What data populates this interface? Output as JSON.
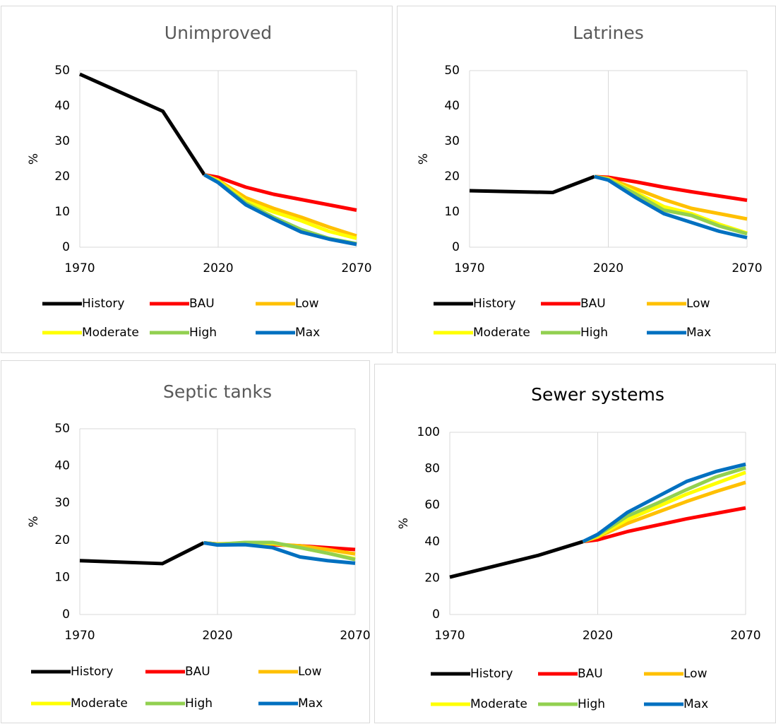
{
  "chart_data": [
    {
      "type": "line",
      "title": "Unimproved",
      "y_label": "%",
      "xlim": [
        1970,
        2070
      ],
      "xticks": [
        1970,
        2020,
        2070
      ],
      "ylim": [
        0,
        50
      ],
      "yticks": [
        0,
        10,
        20,
        30,
        40,
        50
      ],
      "grid": true,
      "series": [
        {
          "name": "History",
          "color": "#000000",
          "x": [
            1970,
            2000,
            2015
          ],
          "values": [
            49,
            38.5,
            20.5
          ]
        },
        {
          "name": "BAU",
          "color": "#ff0000",
          "x": [
            2015,
            2020,
            2030,
            2040,
            2050,
            2060,
            2070
          ],
          "values": [
            20.5,
            19.8,
            17,
            15,
            13.5,
            12,
            10.5
          ]
        },
        {
          "name": "Low",
          "color": "#ffc000",
          "x": [
            2015,
            2020,
            2030,
            2040,
            2050,
            2060,
            2070
          ],
          "values": [
            20.5,
            19,
            14,
            11,
            8.5,
            5.7,
            3.2
          ]
        },
        {
          "name": "Moderate",
          "color": "#ffff00",
          "x": [
            2015,
            2020,
            2030,
            2040,
            2050,
            2060,
            2070
          ],
          "values": [
            20.5,
            18.8,
            13,
            10,
            7.5,
            4.5,
            2.5
          ]
        },
        {
          "name": "High",
          "color": "#92d050",
          "x": [
            2015,
            2020,
            2030,
            2040,
            2050,
            2060,
            2070
          ],
          "values": [
            20.5,
            18.5,
            12.5,
            8.5,
            5,
            2.5,
            1
          ]
        },
        {
          "name": "Max",
          "color": "#0070c0",
          "x": [
            2015,
            2020,
            2030,
            2040,
            2050,
            2060,
            2070
          ],
          "values": [
            20.5,
            18.3,
            12,
            8,
            4.3,
            2.3,
            0.8
          ]
        }
      ]
    },
    {
      "type": "line",
      "title": "Latrines",
      "y_label": "%",
      "xlim": [
        1970,
        2070
      ],
      "xticks": [
        1970,
        2020,
        2070
      ],
      "ylim": [
        0,
        50
      ],
      "yticks": [
        0,
        10,
        20,
        30,
        40,
        50
      ],
      "grid": true,
      "series": [
        {
          "name": "History",
          "color": "#000000",
          "x": [
            1970,
            2000,
            2015
          ],
          "values": [
            16,
            15.5,
            20
          ]
        },
        {
          "name": "BAU",
          "color": "#ff0000",
          "x": [
            2015,
            2020,
            2030,
            2040,
            2050,
            2060,
            2070
          ],
          "values": [
            20,
            19.8,
            18.5,
            17,
            15.7,
            14.5,
            13.3
          ]
        },
        {
          "name": "Low",
          "color": "#ffc000",
          "x": [
            2015,
            2020,
            2030,
            2040,
            2050,
            2060,
            2070
          ],
          "values": [
            20,
            19.5,
            16.5,
            13.5,
            11,
            9.5,
            8
          ]
        },
        {
          "name": "Moderate",
          "color": "#ffff00",
          "x": [
            2015,
            2020,
            2030,
            2040,
            2050,
            2060,
            2070
          ],
          "values": [
            20,
            19.3,
            15.5,
            11.5,
            9.5,
            6.5,
            4
          ]
        },
        {
          "name": "High",
          "color": "#92d050",
          "x": [
            2015,
            2020,
            2030,
            2040,
            2050,
            2060,
            2070
          ],
          "values": [
            20,
            19.2,
            15,
            10.5,
            9,
            6,
            3.8
          ]
        },
        {
          "name": "Max",
          "color": "#0070c0",
          "x": [
            2015,
            2020,
            2030,
            2040,
            2050,
            2060,
            2070
          ],
          "values": [
            20,
            19,
            14,
            9.5,
            7,
            4.5,
            2.7
          ]
        }
      ]
    },
    {
      "type": "line",
      "title": "Septic tanks",
      "y_label": "%",
      "xlim": [
        1970,
        2070
      ],
      "xticks": [
        1970,
        2020,
        2070
      ],
      "ylim": [
        0,
        50
      ],
      "yticks": [
        0,
        10,
        20,
        30,
        40,
        50
      ],
      "grid": true,
      "series": [
        {
          "name": "History",
          "color": "#000000",
          "x": [
            1970,
            2000,
            2015
          ],
          "values": [
            14.5,
            13.7,
            19.3
          ]
        },
        {
          "name": "BAU",
          "color": "#ff0000",
          "x": [
            2015,
            2020,
            2030,
            2040,
            2050,
            2060,
            2070
          ],
          "values": [
            19.3,
            19,
            19,
            18.8,
            18.5,
            18,
            17.5
          ]
        },
        {
          "name": "Low",
          "color": "#ffc000",
          "x": [
            2015,
            2020,
            2030,
            2040,
            2050,
            2060,
            2070
          ],
          "values": [
            19.3,
            19,
            19.2,
            19,
            18.5,
            17.5,
            16.3
          ]
        },
        {
          "name": "Moderate",
          "color": "#ffff00",
          "x": [
            2015,
            2020,
            2030,
            2040,
            2050,
            2060,
            2070
          ],
          "values": [
            19.3,
            18.9,
            19.3,
            19.2,
            18,
            16.5,
            15
          ]
        },
        {
          "name": "High",
          "color": "#92d050",
          "x": [
            2015,
            2020,
            2030,
            2040,
            2050,
            2060,
            2070
          ],
          "values": [
            19.3,
            18.9,
            19.4,
            19.4,
            18,
            16.5,
            14.8
          ]
        },
        {
          "name": "Max",
          "color": "#0070c0",
          "x": [
            2015,
            2020,
            2030,
            2040,
            2050,
            2060,
            2070
          ],
          "values": [
            19.3,
            18.7,
            18.8,
            18,
            15.5,
            14.5,
            13.8
          ]
        }
      ]
    },
    {
      "type": "line",
      "title": "Sewer systems",
      "y_label": "%",
      "xlim": [
        1970,
        2070
      ],
      "xticks": [
        1970,
        2020,
        2070
      ],
      "ylim": [
        0,
        100
      ],
      "yticks": [
        0,
        20,
        40,
        60,
        80,
        100
      ],
      "grid": true,
      "series": [
        {
          "name": "History",
          "color": "#000000",
          "x": [
            1970,
            2000,
            2015
          ],
          "values": [
            20.5,
            32.5,
            40
          ]
        },
        {
          "name": "BAU",
          "color": "#ff0000",
          "x": [
            2015,
            2020,
            2030,
            2040,
            2050,
            2060,
            2070
          ],
          "values": [
            40,
            41,
            45.5,
            49,
            52.5,
            55.5,
            58.5
          ]
        },
        {
          "name": "Low",
          "color": "#ffc000",
          "x": [
            2015,
            2020,
            2030,
            2040,
            2050,
            2060,
            2070
          ],
          "values": [
            40,
            42.5,
            50,
            56,
            62,
            67.5,
            72.5
          ]
        },
        {
          "name": "Moderate",
          "color": "#ffff00",
          "x": [
            2015,
            2020,
            2030,
            2040,
            2050,
            2060,
            2070
          ],
          "values": [
            40,
            43,
            52,
            59,
            66,
            72,
            78
          ]
        },
        {
          "name": "High",
          "color": "#92d050",
          "x": [
            2015,
            2020,
            2030,
            2040,
            2050,
            2060,
            2070
          ],
          "values": [
            40,
            43.5,
            54,
            61,
            68.5,
            75.5,
            80.5
          ]
        },
        {
          "name": "Max",
          "color": "#0070c0",
          "x": [
            2015,
            2020,
            2030,
            2040,
            2050,
            2060,
            2070
          ],
          "values": [
            40,
            44,
            56,
            64.5,
            73,
            78.5,
            82.5
          ]
        }
      ]
    }
  ]
}
